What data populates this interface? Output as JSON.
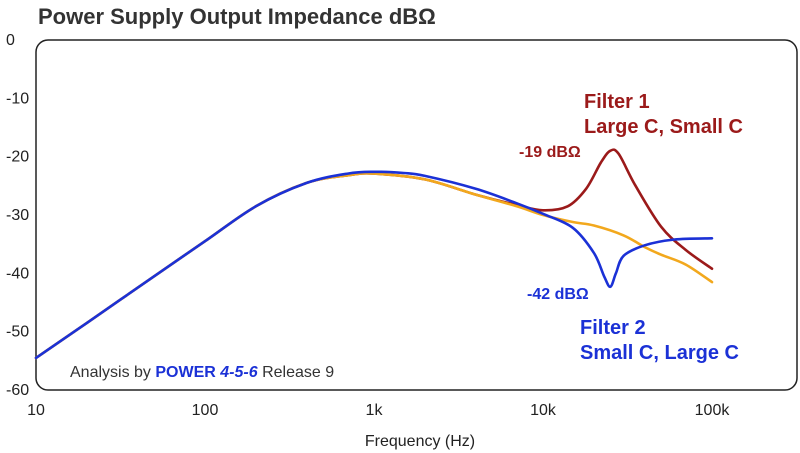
{
  "chart_data": {
    "type": "line",
    "title": "Power Supply Output Impedance dBΩ",
    "xlabel": "Frequency (Hz)",
    "ylabel": "",
    "x_scale": "log",
    "xlim": [
      10,
      200000
    ],
    "ylim": [
      -60,
      0
    ],
    "x_ticks": [
      10,
      100,
      1000,
      10000,
      100000
    ],
    "x_tick_labels": [
      "10",
      "100",
      "1k",
      "10k",
      "100k"
    ],
    "y_ticks": [
      0,
      -10,
      -20,
      -30,
      -40,
      -50,
      -60
    ],
    "y_tick_labels": [
      "0",
      "-10",
      "-20",
      "-30",
      "-40",
      "-50",
      "-60"
    ],
    "grid": false,
    "series": [
      {
        "name": "Filter 1 Large C, Small C",
        "color": "#9b1a1a",
        "x": [
          10,
          20,
          50,
          100,
          200,
          400,
          700,
          1000,
          2000,
          4000,
          7000,
          10000,
          14000,
          18000,
          22000,
          25000,
          28000,
          35000,
          50000,
          70000,
          100000
        ],
        "y": [
          -54.5,
          -48.5,
          -40.5,
          -34.5,
          -28.5,
          -24.5,
          -23.2,
          -22.9,
          -23.9,
          -26.5,
          -28.3,
          -29.2,
          -28.5,
          -25.5,
          -21.0,
          -19.0,
          -19.5,
          -24.8,
          -32.0,
          -36.0,
          -39.2
        ]
      },
      {
        "name": "",
        "color": "#f2a81d",
        "x": [
          10,
          20,
          50,
          100,
          200,
          400,
          700,
          1000,
          2000,
          4000,
          7000,
          10000,
          15000,
          20000,
          30000,
          40000,
          50000,
          70000,
          100000
        ],
        "y": [
          -54.5,
          -48.5,
          -40.5,
          -34.5,
          -28.5,
          -24.5,
          -23.2,
          -22.9,
          -23.9,
          -26.5,
          -28.5,
          -30.0,
          -31.2,
          -31.8,
          -33.5,
          -35.5,
          -36.8,
          -38.5,
          -41.5
        ]
      },
      {
        "name": "Filter 2 Small C, Large C",
        "color": "#1b31d6",
        "x": [
          10,
          20,
          50,
          100,
          200,
          400,
          700,
          1000,
          1500,
          2000,
          4000,
          7000,
          10000,
          15000,
          20000,
          23000,
          25000,
          27000,
          30000,
          40000,
          60000,
          100000
        ],
        "y": [
          -54.5,
          -48.5,
          -40.5,
          -34.5,
          -28.5,
          -24.5,
          -22.9,
          -22.6,
          -22.8,
          -23.3,
          -25.5,
          -28.0,
          -29.8,
          -32.2,
          -36.5,
          -40.5,
          -42.3,
          -40.0,
          -37.0,
          -35.2,
          -34.2,
          -34.0
        ]
      }
    ],
    "annotations": {
      "filter1_title": "Filter 1",
      "filter1_sub": "Large C, Small C",
      "filter1_peak": "-19 dBΩ",
      "filter2_title": "Filter 2",
      "filter2_sub": "Small C, Large C",
      "filter2_dip": "-42 dBΩ"
    },
    "credit": {
      "prefix": "Analysis by ",
      "brand": "POWER ",
      "version": "4-5-6",
      "suffix": " Release 9",
      "brand_color": "#1b31d6"
    }
  }
}
